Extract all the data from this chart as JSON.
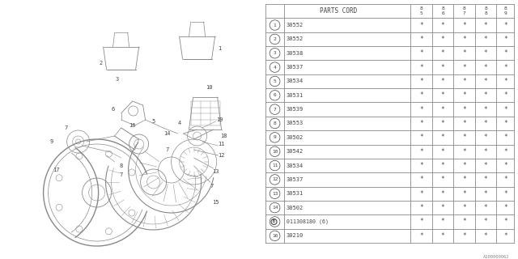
{
  "bg_color": "#ffffff",
  "diag_bg": "#f0f0f0",
  "table": {
    "rows": [
      [
        "1",
        "30552"
      ],
      [
        "2",
        "30552"
      ],
      [
        "3",
        "30538"
      ],
      [
        "4",
        "30537"
      ],
      [
        "5",
        "30534"
      ],
      [
        "6",
        "30531"
      ],
      [
        "7",
        "30539"
      ],
      [
        "8",
        "30553"
      ],
      [
        "9",
        "30502"
      ],
      [
        "10",
        "30542"
      ],
      [
        "11",
        "30534"
      ],
      [
        "12",
        "30537"
      ],
      [
        "13",
        "30531"
      ],
      [
        "14",
        "30502"
      ],
      [
        "15",
        "B011308180 (6)"
      ],
      [
        "16",
        "30210"
      ]
    ],
    "years": [
      "85",
      "86",
      "87",
      "88",
      "89"
    ]
  },
  "watermark": "A100000062",
  "lc": "#888888",
  "tc": "#444444",
  "tlc": "#888888"
}
